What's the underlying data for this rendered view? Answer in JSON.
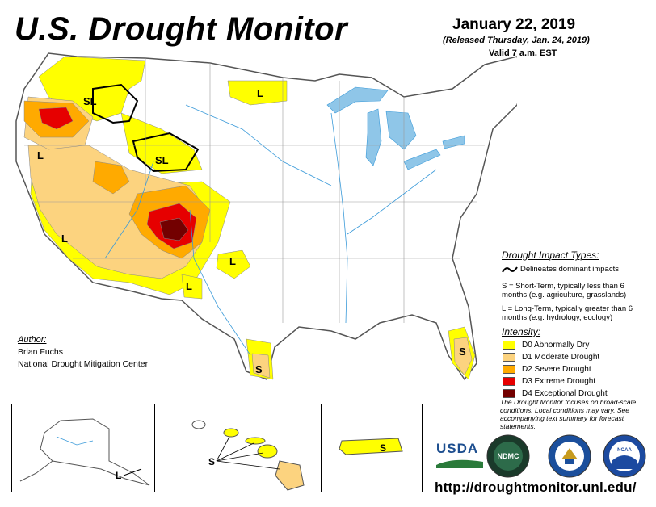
{
  "header": {
    "title": "U.S. Drought Monitor",
    "date": "January 22, 2019",
    "released": "(Released Thursday, Jan. 24, 2019)",
    "valid": "Valid 7 a.m. EST"
  },
  "map_labels": {
    "sl_1": "SL",
    "sl_2": "SL",
    "l_north_dakota": "L",
    "l_oregon": "L",
    "l_california": "L",
    "l_new_mexico_east": "L",
    "l_new_mexico_south": "L",
    "s_texas": "S",
    "s_florida": "S",
    "l_alaska": "L",
    "s_hawaii": "S",
    "s_puerto_rico": "S"
  },
  "legend": {
    "impact_title": "Drought Impact Types:",
    "impact_line": "Delineates dominant impacts",
    "impact_s": "S = Short-Term, typically less than 6 months (e.g. agriculture, grasslands)",
    "impact_l": "L = Long-Term, typically greater than 6 months (e.g. hydrology, ecology)",
    "intensity_title": "Intensity:",
    "intensity": [
      {
        "label": "D0 Abnormally Dry",
        "color": "#ffff00"
      },
      {
        "label": "D1 Moderate Drought",
        "color": "#fcd37f"
      },
      {
        "label": "D2 Severe Drought",
        "color": "#ffaa00"
      },
      {
        "label": "D3 Extreme Drought",
        "color": "#e60000"
      },
      {
        "label": "D4 Exceptional Drought",
        "color": "#730000"
      }
    ]
  },
  "author": {
    "label": "Author:",
    "name": "Brian Fuchs",
    "org": "National Drought Mitigation Center"
  },
  "disclaimer": "The Drought Monitor focuses on broad-scale conditions. Local conditions may vary. See accompanying text summary for forecast statements.",
  "logos": {
    "usda": "USDA",
    "ndmc": "NDMC",
    "noaa": "NOAA"
  },
  "url": "http://droughtmonitor.unl.edu/",
  "colors": {
    "water": "#8fc6e8",
    "river": "#3a9ad9",
    "border": "#555555"
  }
}
